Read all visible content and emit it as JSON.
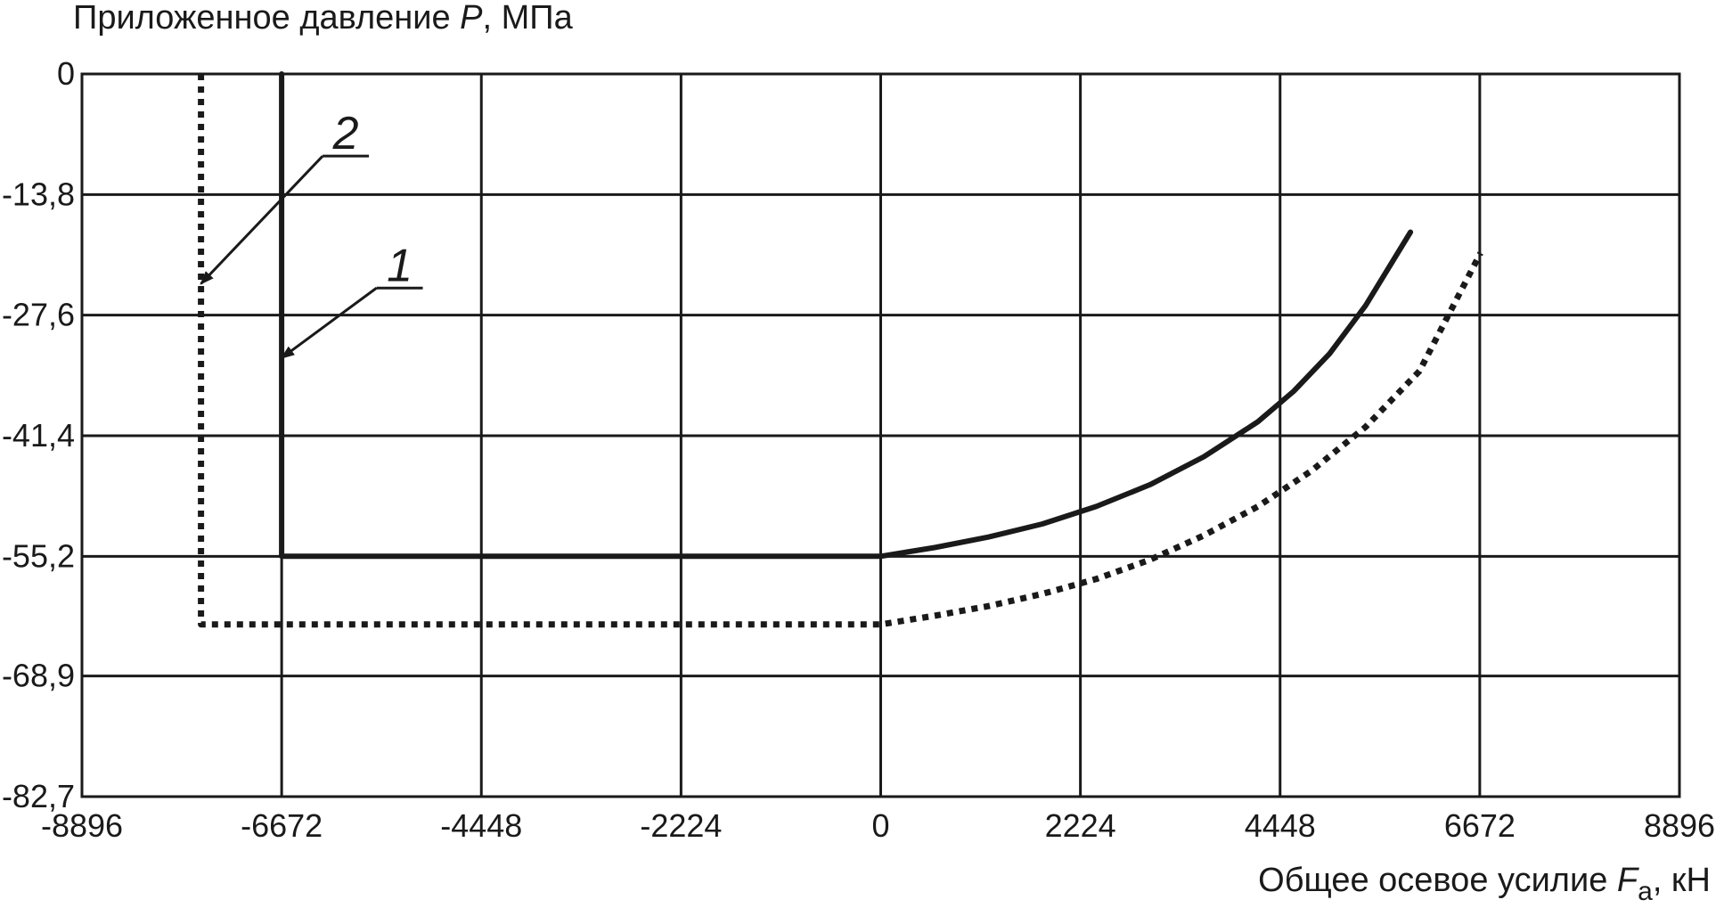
{
  "chart_data": {
    "type": "line",
    "ylabel_prefix": "Приложенное давление ",
    "ylabel_var": "P",
    "ylabel_suffix": ", МПа",
    "xlabel_prefix": "Общее осевое усилие ",
    "xlabel_var": "F",
    "xlabel_sub": "a",
    "xlabel_suffix": ", кН",
    "xlim": [
      -8896,
      8896
    ],
    "ylim": [
      -82.7,
      0
    ],
    "x_ticks": [
      "-8896",
      "-6672",
      "-4448",
      "-2224",
      "0",
      "2224",
      "4448",
      "6672",
      "8896"
    ],
    "x_tick_values": [
      -8896,
      -6672,
      -4448,
      -2224,
      0,
      2224,
      4448,
      6672,
      8896
    ],
    "y_ticks": [
      "0",
      "-13,8",
      "-27,6",
      "-41,4",
      "-55,2",
      "-68,9",
      "-82,7"
    ],
    "y_tick_values": [
      0,
      -13.8,
      -27.6,
      -41.4,
      -55.2,
      -68.9,
      -82.7
    ],
    "grid": true,
    "series": [
      {
        "name": "1",
        "style": "solid",
        "color": "#1a1a1a",
        "x": [
          -6672,
          -6672,
          0,
          600,
          1200,
          1800,
          2400,
          3000,
          3600,
          4200,
          4600,
          5000,
          5400,
          5900
        ],
        "y": [
          0,
          -55.2,
          -55.2,
          -54.2,
          -53.0,
          -51.5,
          -49.5,
          -47.0,
          -43.8,
          -39.8,
          -36.3,
          -32.0,
          -26.5,
          -18.1
        ]
      },
      {
        "name": "2",
        "style": "dotted",
        "color": "#1a1a1a",
        "x": [
          -7570,
          -7570,
          0,
          600,
          1200,
          1800,
          2400,
          3000,
          3600,
          4200,
          4800,
          5400,
          6000,
          6680
        ],
        "y": [
          0,
          -63.0,
          -63.0,
          -62.0,
          -60.9,
          -59.5,
          -57.8,
          -55.6,
          -52.8,
          -49.5,
          -45.4,
          -40.4,
          -34.0,
          -20.5
        ]
      }
    ],
    "annotations": [
      {
        "text": "1",
        "arrow_to": [
          -6672,
          -32.5
        ],
        "leader_from": [
          -5100,
          -24.5
        ]
      },
      {
        "text": "2",
        "arrow_to": [
          -7570,
          -24.0
        ],
        "leader_from": [
          -5700,
          -9.4
        ]
      }
    ]
  }
}
